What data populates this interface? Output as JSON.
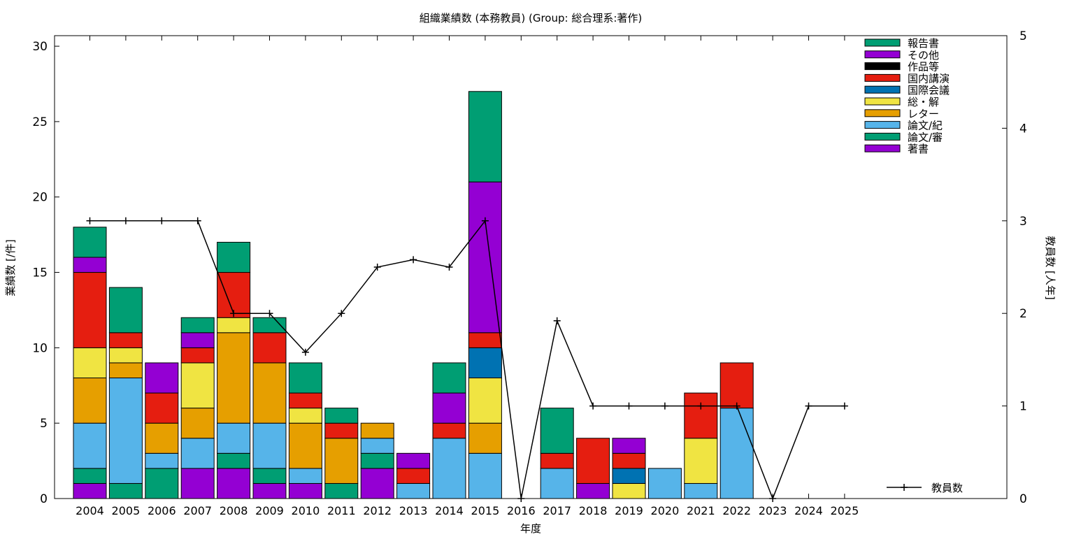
{
  "chart_data": {
    "type": "bar",
    "title": "組織業績数 (本務教員) (Group: 総合理系:著作)",
    "xlabel": "年度",
    "ylabel": "業績数 [/件]",
    "y2label": "教員数 [人年]",
    "ylim": [
      0,
      30.7
    ],
    "y2lim": [
      0,
      5
    ],
    "yticks": [
      0,
      5,
      10,
      15,
      20,
      25,
      30
    ],
    "y2ticks": [
      0,
      1,
      2,
      3,
      4,
      5
    ],
    "categories": [
      "2004",
      "2005",
      "2006",
      "2007",
      "2008",
      "2009",
      "2010",
      "2011",
      "2012",
      "2013",
      "2014",
      "2015",
      "2016",
      "2017",
      "2018",
      "2019",
      "2020",
      "2021",
      "2022",
      "2023",
      "2024",
      "2025"
    ],
    "stacked": true,
    "legend_position": "top-right",
    "series": [
      {
        "name": "著書",
        "color": "#9400d3",
        "values": [
          1,
          0,
          0,
          2,
          2,
          1,
          1,
          0,
          2,
          0,
          0,
          0,
          0,
          0,
          1,
          0,
          0,
          0,
          0,
          0,
          0,
          0
        ]
      },
      {
        "name": "論文/審",
        "color": "#009e73",
        "values": [
          1,
          1,
          2,
          0,
          1,
          1,
          0,
          1,
          1,
          0,
          0,
          0,
          0,
          0,
          0,
          0,
          0,
          0,
          0,
          0,
          0,
          0
        ]
      },
      {
        "name": "論文/紀",
        "color": "#56b4e9",
        "values": [
          3,
          7,
          1,
          2,
          2,
          3,
          1,
          0,
          1,
          1,
          4,
          3,
          0,
          2,
          0,
          0,
          2,
          1,
          6,
          0,
          0,
          0
        ]
      },
      {
        "name": "レター",
        "color": "#e69f00",
        "values": [
          3,
          1,
          2,
          2,
          6,
          4,
          3,
          3,
          1,
          0,
          0,
          2,
          0,
          0,
          0,
          0,
          0,
          0,
          0,
          0,
          0,
          0
        ]
      },
      {
        "name": "総・解",
        "color": "#f0e442",
        "values": [
          2,
          1,
          0,
          3,
          1,
          0,
          1,
          0,
          0,
          0,
          0,
          3,
          0,
          0,
          0,
          1,
          0,
          3,
          0,
          0,
          0,
          0
        ]
      },
      {
        "name": "国際会議",
        "color": "#0072b2",
        "values": [
          0,
          0,
          0,
          0,
          0,
          0,
          0,
          0,
          0,
          0,
          0,
          2,
          0,
          0,
          0,
          1,
          0,
          0,
          0,
          0,
          0,
          0
        ]
      },
      {
        "name": "国内講演",
        "color": "#e51e10",
        "values": [
          5,
          1,
          2,
          1,
          3,
          2,
          1,
          1,
          0,
          1,
          1,
          1,
          0,
          1,
          3,
          1,
          0,
          3,
          3,
          0,
          0,
          0
        ]
      },
      {
        "name": "作品等",
        "color": "#000000",
        "values": [
          0,
          0,
          0,
          0,
          0,
          0,
          0,
          0,
          0,
          0,
          0,
          0,
          0,
          0,
          0,
          0,
          0,
          0,
          0,
          0,
          0,
          0
        ]
      },
      {
        "name": "その他",
        "color": "#9400d3",
        "values": [
          1,
          0,
          2,
          1,
          0,
          0,
          0,
          0,
          0,
          1,
          2,
          10,
          0,
          0,
          0,
          1,
          0,
          0,
          0,
          0,
          0,
          0
        ]
      },
      {
        "name": "報告書",
        "color": "#009e73",
        "values": [
          2,
          3,
          0,
          1,
          2,
          1,
          2,
          1,
          0,
          0,
          2,
          6,
          0,
          3,
          0,
          0,
          0,
          0,
          0,
          0,
          0,
          0
        ]
      }
    ],
    "line": {
      "name": "教員数",
      "axis": "right",
      "color": "#000000",
      "values": [
        3,
        3,
        3,
        3,
        2,
        2,
        1.58,
        2,
        2.5,
        2.58,
        2.5,
        3,
        0,
        1.92,
        1,
        1,
        1,
        1,
        1,
        0,
        1,
        1
      ]
    }
  }
}
